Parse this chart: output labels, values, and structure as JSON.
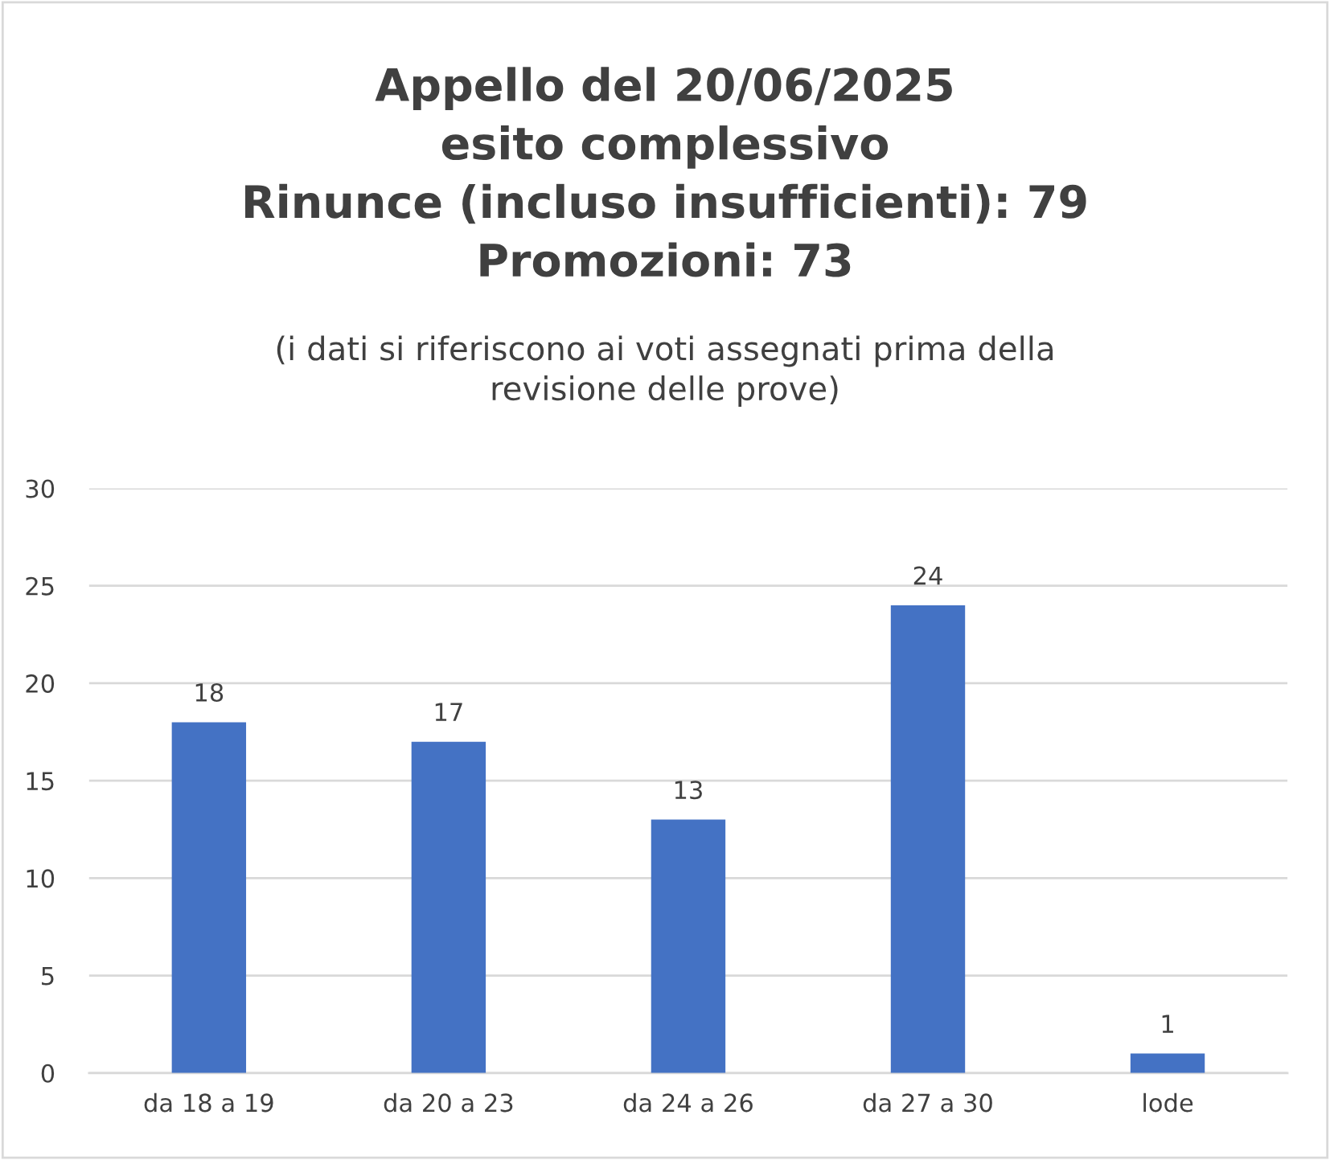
{
  "chart_data": {
    "type": "bar",
    "title": "Appello del 20/06/2025\nesito complessivo\nRinunce (incluso insufficienti): 79\nPromozioni: 73",
    "subtitle": "(i dati si riferiscono ai voti assegnati prima della\nrevisione delle prove)",
    "categories": [
      "da 18 a 19",
      "da 20 a 23",
      "da 24 a 26",
      "da 27 a 30",
      "lode"
    ],
    "values": [
      18,
      17,
      13,
      24,
      1
    ],
    "color": "#4472c4",
    "ylim": [
      0,
      30
    ],
    "yticks": [
      0,
      5,
      10,
      15,
      20,
      25,
      30
    ],
    "grid": "y",
    "data_labels": true
  }
}
